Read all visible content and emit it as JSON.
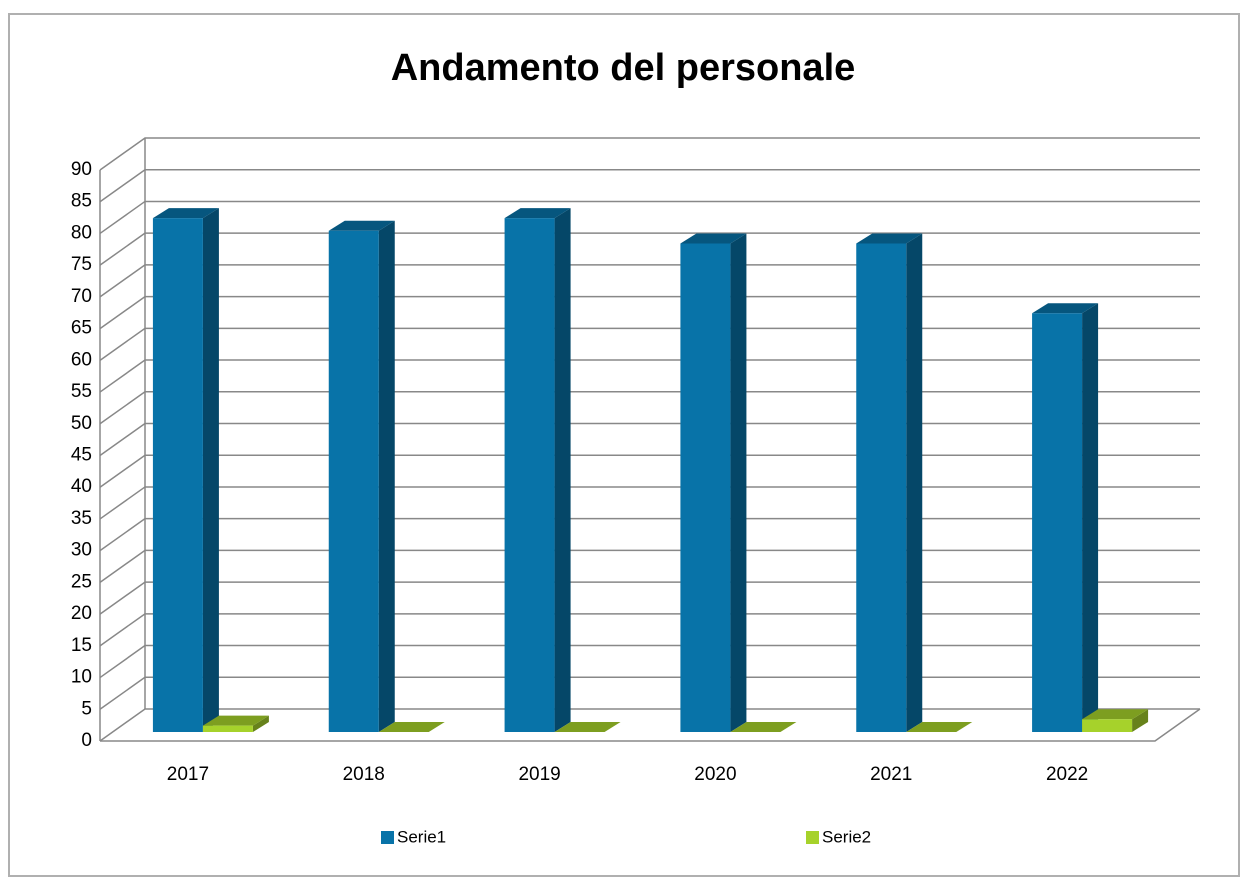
{
  "chart_data": {
    "type": "bar3d",
    "title": "Andamento del personale",
    "categories": [
      "2017",
      "2018",
      "2019",
      "2020",
      "2021",
      "2022"
    ],
    "series": [
      {
        "name": "Serie1",
        "color": "#0873a8",
        "values": [
          81,
          79,
          81,
          77,
          77,
          66
        ]
      },
      {
        "name": "Serie2",
        "color": "#a6d22b",
        "values": [
          1,
          0,
          0,
          0,
          0,
          2
        ]
      }
    ],
    "ylim": [
      0,
      90
    ],
    "yticks": [
      0,
      5,
      10,
      15,
      20,
      25,
      30,
      35,
      40,
      45,
      50,
      55,
      60,
      65,
      70,
      75,
      80,
      85,
      90
    ],
    "grid": true,
    "legend": "bottom"
  }
}
